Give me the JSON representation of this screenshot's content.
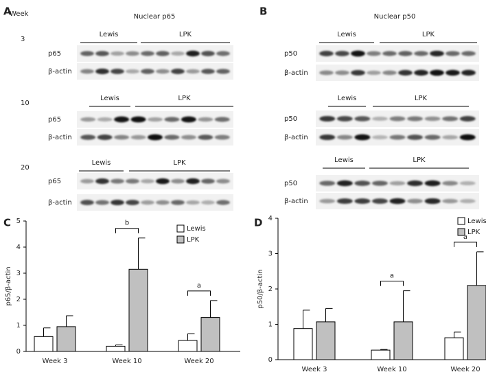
{
  "blots": {
    "week_header": "Week",
    "panels": [
      {
        "letter": "A",
        "title": "Nuclear p65",
        "groups": [
          {
            "week": "3",
            "lewis": "Lewis",
            "lpk": "LPK",
            "rows": [
              "p65",
              "β-actin"
            ]
          },
          {
            "week": "10",
            "lewis": "Lewis",
            "lpk": "LPK",
            "rows": [
              "p65",
              "β-actin"
            ]
          },
          {
            "week": "20",
            "lewis": "Lewis",
            "lpk": "LPK",
            "rows": [
              "p65",
              "β-actin"
            ]
          }
        ]
      },
      {
        "letter": "B",
        "title": "Nuclear p50",
        "groups": [
          {
            "lewis": "Lewis",
            "lpk": "LPK",
            "rows": [
              "p50",
              "β-actin"
            ]
          },
          {
            "lewis": "Lewis",
            "lpk": "LPK",
            "rows": [
              "p50",
              "β-actin"
            ]
          },
          {
            "lewis": "Lewis",
            "lpk": "LPK",
            "rows": [
              "p50",
              "β-actin"
            ]
          }
        ]
      }
    ]
  },
  "chart_data": [
    {
      "type": "bar",
      "panel": "C",
      "y_label": "p65/β-actin",
      "categories": [
        "Week 3",
        "Week 10",
        "Week 20"
      ],
      "series": [
        {
          "name": "Lewis",
          "color": "#ffffff",
          "values": [
            0.57,
            0.2,
            0.42
          ],
          "errors": [
            0.33,
            0.05,
            0.26
          ]
        },
        {
          "name": "LPK",
          "color": "#c0c0c0",
          "values": [
            0.95,
            3.15,
            1.3
          ],
          "errors": [
            0.42,
            1.2,
            0.65
          ]
        }
      ],
      "significance": [
        null,
        "b",
        "a"
      ],
      "ylim": [
        0,
        5
      ],
      "yticks": [
        0,
        1,
        2,
        3,
        4,
        5
      ],
      "legend": "top-right"
    },
    {
      "type": "bar",
      "panel": "D",
      "y_label": "p50/β-actin",
      "categories": [
        "Week 3",
        "Week 10",
        "Week 20"
      ],
      "series": [
        {
          "name": "Lewis",
          "color": "#ffffff",
          "values": [
            0.88,
            0.27,
            0.62
          ],
          "errors": [
            0.52,
            0.02,
            0.16
          ]
        },
        {
          "name": "LPK",
          "color": "#c0c0c0",
          "values": [
            1.07,
            1.07,
            2.1
          ],
          "errors": [
            0.38,
            0.88,
            0.95
          ]
        }
      ],
      "significance": [
        null,
        "a",
        "a"
      ],
      "ylim": [
        0,
        4
      ],
      "yticks": [
        0,
        1,
        2,
        3,
        4
      ],
      "legend": "top-right"
    }
  ]
}
